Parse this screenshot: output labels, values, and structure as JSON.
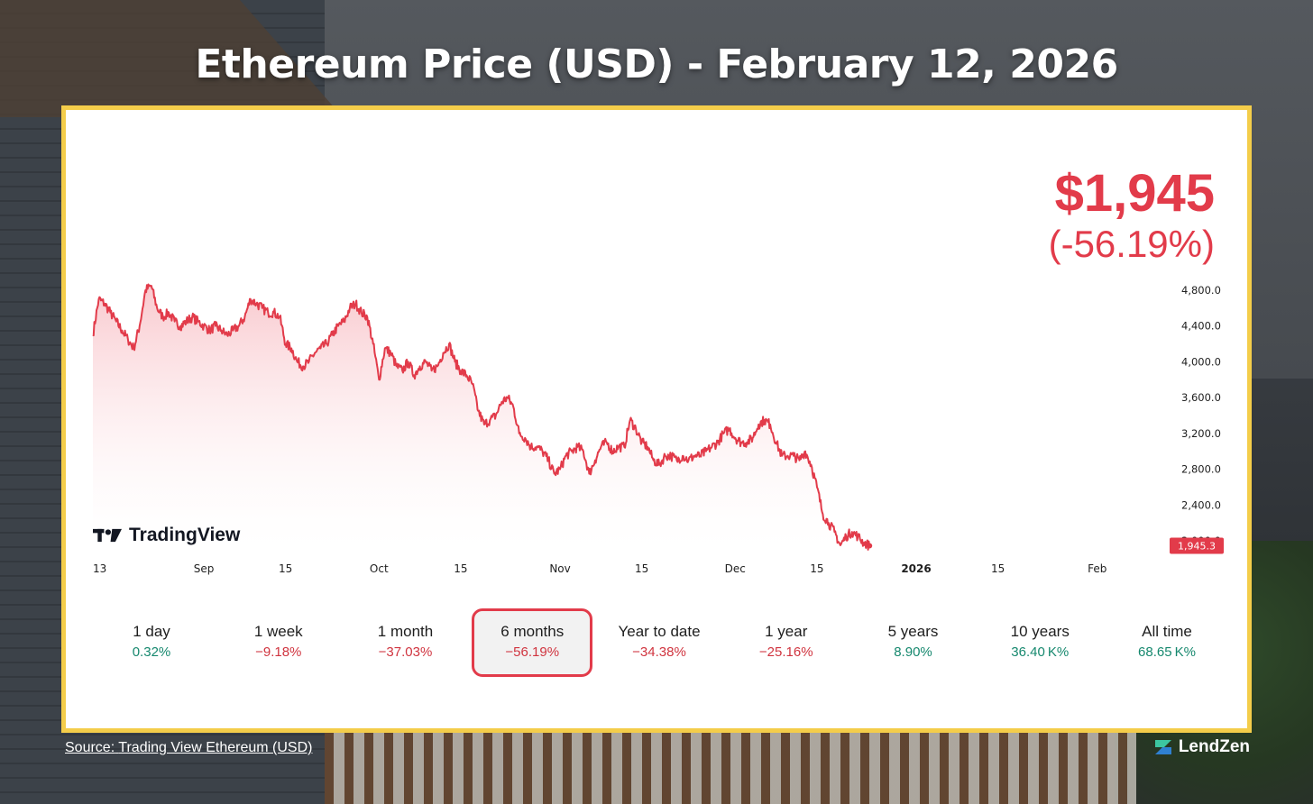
{
  "header": {
    "title": "Ethereum Price (USD) - February 12, 2026"
  },
  "price": {
    "value": "$1,945",
    "change": "(-56.19%)"
  },
  "branding": {
    "chart_logo": "TradingView",
    "site_logo": "LendZen"
  },
  "footer": {
    "source_prefix": "Source:",
    "source_link": "Trading View Ethereum (USD)"
  },
  "colors": {
    "line": "#e23b4a",
    "accent_border": "#f4cd4a",
    "positive": "#16886e",
    "negative": "#d0343f"
  },
  "ranges": [
    {
      "label": "1 day",
      "value": "0.32%",
      "trend": "pos"
    },
    {
      "label": "1 week",
      "value": "−9.18%",
      "trend": "neg"
    },
    {
      "label": "1 month",
      "value": "−37.03%",
      "trend": "neg"
    },
    {
      "label": "6 months",
      "value": "−56.19%",
      "trend": "neg",
      "selected": true
    },
    {
      "label": "Year to date",
      "value": "−34.38%",
      "trend": "neg"
    },
    {
      "label": "1 year",
      "value": "−25.16%",
      "trend": "neg"
    },
    {
      "label": "5 years",
      "value": "8.90%",
      "trend": "pos"
    },
    {
      "label": "10 years",
      "value": "36.40 K%",
      "trend": "pos"
    },
    {
      "label": "All time",
      "value": "68.65 K%",
      "trend": "pos"
    }
  ],
  "chart_data": {
    "type": "area",
    "title": "",
    "ylim": [
      1900,
      4900
    ],
    "y_ticks": [
      "4,800.0",
      "4,400.0",
      "4,000.0",
      "3,600.0",
      "3,200.0",
      "2,800.0",
      "2,400.0",
      "2,000.0"
    ],
    "y_tick_values": [
      4800,
      4400,
      4000,
      3600,
      3200,
      2800,
      2400,
      2000
    ],
    "x_ticks": [
      {
        "label": "13",
        "day": 0
      },
      {
        "label": "Sep",
        "day": 19
      },
      {
        "label": "15",
        "day": 33
      },
      {
        "label": "Oct",
        "day": 49
      },
      {
        "label": "15",
        "day": 63
      },
      {
        "label": "Nov",
        "day": 80
      },
      {
        "label": "15",
        "day": 94
      },
      {
        "label": "Dec",
        "day": 110
      },
      {
        "label": "15",
        "day": 124
      },
      {
        "label": "2026",
        "day": 141,
        "bold": true
      },
      {
        "label": "15",
        "day": 155
      },
      {
        "label": "Feb",
        "day": 172
      }
    ],
    "x_range_days": [
      0,
      183
    ],
    "last_value_label": "1,945.3",
    "series": [
      {
        "values_by_day": [
          [
            0,
            4300
          ],
          [
            1,
            4700
          ],
          [
            2,
            4650
          ],
          [
            3,
            4550
          ],
          [
            4,
            4450
          ],
          [
            5,
            4350
          ],
          [
            6,
            4250
          ],
          [
            7,
            4150
          ],
          [
            8,
            4400
          ],
          [
            9,
            4800
          ],
          [
            10,
            4850
          ],
          [
            11,
            4600
          ],
          [
            12,
            4500
          ],
          [
            13,
            4550
          ],
          [
            14,
            4450
          ],
          [
            15,
            4400
          ],
          [
            16,
            4450
          ],
          [
            17,
            4500
          ],
          [
            18,
            4450
          ],
          [
            19,
            4400
          ],
          [
            20,
            4350
          ],
          [
            21,
            4400
          ],
          [
            22,
            4350
          ],
          [
            23,
            4300
          ],
          [
            24,
            4350
          ],
          [
            25,
            4400
          ],
          [
            26,
            4500
          ],
          [
            27,
            4700
          ],
          [
            28,
            4650
          ],
          [
            29,
            4600
          ],
          [
            30,
            4550
          ],
          [
            31,
            4550
          ],
          [
            32,
            4500
          ],
          [
            33,
            4200
          ],
          [
            34,
            4150
          ],
          [
            35,
            4000
          ],
          [
            36,
            3950
          ],
          [
            37,
            4000
          ],
          [
            38,
            4100
          ],
          [
            39,
            4150
          ],
          [
            40,
            4200
          ],
          [
            41,
            4300
          ],
          [
            42,
            4400
          ],
          [
            43,
            4450
          ],
          [
            44,
            4600
          ],
          [
            45,
            4650
          ],
          [
            46,
            4550
          ],
          [
            47,
            4500
          ],
          [
            48,
            4200
          ],
          [
            49,
            3800
          ],
          [
            50,
            4150
          ],
          [
            51,
            4100
          ],
          [
            52,
            3950
          ],
          [
            53,
            3900
          ],
          [
            54,
            4000
          ],
          [
            55,
            3850
          ],
          [
            56,
            3950
          ],
          [
            57,
            4000
          ],
          [
            58,
            3900
          ],
          [
            59,
            3950
          ],
          [
            60,
            4100
          ],
          [
            61,
            4200
          ],
          [
            62,
            4000
          ],
          [
            63,
            3900
          ],
          [
            64,
            3850
          ],
          [
            65,
            3750
          ],
          [
            66,
            3450
          ],
          [
            67,
            3300
          ],
          [
            68,
            3350
          ],
          [
            69,
            3400
          ],
          [
            70,
            3550
          ],
          [
            71,
            3600
          ],
          [
            72,
            3500
          ],
          [
            73,
            3200
          ],
          [
            74,
            3150
          ],
          [
            75,
            3050
          ],
          [
            76,
            3050
          ],
          [
            77,
            3000
          ],
          [
            78,
            2900
          ],
          [
            79,
            2750
          ],
          [
            80,
            2800
          ],
          [
            81,
            2950
          ],
          [
            82,
            3000
          ],
          [
            83,
            3050
          ],
          [
            84,
            3000
          ],
          [
            85,
            2750
          ],
          [
            86,
            2900
          ],
          [
            87,
            3050
          ],
          [
            88,
            3100
          ],
          [
            89,
            3000
          ],
          [
            90,
            3050
          ],
          [
            91,
            3050
          ],
          [
            92,
            3350
          ],
          [
            93,
            3250
          ],
          [
            94,
            3100
          ],
          [
            95,
            3050
          ],
          [
            96,
            2900
          ],
          [
            97,
            2850
          ],
          [
            98,
            2950
          ],
          [
            99,
            2950
          ],
          [
            100,
            2900
          ],
          [
            101,
            2950
          ],
          [
            102,
            2900
          ],
          [
            103,
            2950
          ],
          [
            104,
            2950
          ],
          [
            105,
            3000
          ],
          [
            106,
            3050
          ],
          [
            107,
            3100
          ],
          [
            108,
            3200
          ],
          [
            109,
            3250
          ],
          [
            110,
            3150
          ],
          [
            111,
            3100
          ],
          [
            112,
            3100
          ],
          [
            113,
            3150
          ],
          [
            114,
            3300
          ],
          [
            115,
            3350
          ],
          [
            116,
            3300
          ],
          [
            117,
            3100
          ],
          [
            118,
            2950
          ],
          [
            119,
            2950
          ],
          [
            120,
            2950
          ],
          [
            121,
            2900
          ],
          [
            122,
            3000
          ],
          [
            123,
            2850
          ],
          [
            124,
            2600
          ],
          [
            125,
            2300
          ],
          [
            126,
            2200
          ],
          [
            127,
            2100
          ],
          [
            128,
            1950
          ],
          [
            129,
            2050
          ],
          [
            130,
            2100
          ],
          [
            131,
            2050
          ],
          [
            132,
            1980
          ],
          [
            133,
            1945.3
          ]
        ]
      }
    ]
  }
}
